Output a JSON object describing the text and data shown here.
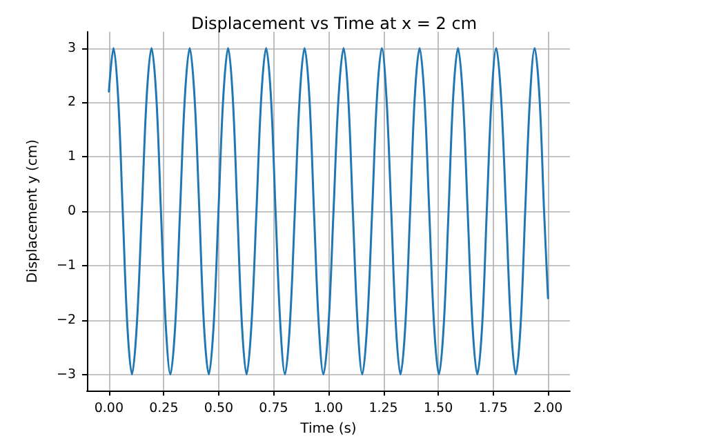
{
  "chart_data": {
    "type": "line",
    "title": "Displacement vs Time at x = 2 cm",
    "xlabel": "Time (s)",
    "ylabel": "Displacement y (cm)",
    "x": [
      0,
      0.021,
      0.042,
      0.063,
      0.084,
      0.105,
      0.127,
      0.15,
      0.172,
      0.194,
      0.216,
      0.237,
      0.259,
      0.28,
      0.302,
      0.324,
      0.346,
      0.368,
      0.39,
      0.412,
      0.433,
      0.455,
      0.477,
      0.499,
      0.521,
      0.543,
      0.564,
      0.585,
      0.606,
      0.627,
      0.649,
      0.672,
      0.694,
      0.716,
      0.738,
      0.759,
      0.781,
      0.802,
      0.824,
      0.847,
      0.869,
      0.891,
      0.913,
      0.934,
      0.956,
      0.977,
      1.0,
      1.023,
      1.046,
      1.069,
      1.09,
      1.111,
      1.133,
      1.154,
      1.176,
      1.199,
      1.221,
      1.243,
      1.264,
      1.286,
      1.307,
      1.328,
      1.35,
      1.372,
      1.393,
      1.415,
      1.437,
      1.459,
      1.481,
      1.503,
      1.525,
      1.547,
      1.568,
      1.59,
      1.612,
      1.634,
      1.656,
      1.678,
      1.7,
      1.721,
      1.743,
      1.764,
      1.786,
      1.809,
      1.831,
      1.853,
      1.875,
      1.896,
      1.918,
      1.939,
      1.961,
      1.982,
      2.0
    ],
    "series": [
      {
        "color": "#1f77b4",
        "values": [
          2.2,
          3,
          2.1,
          0,
          -2.1,
          -3,
          -2.1,
          0,
          2.1,
          3,
          2.1,
          0,
          -2.1,
          -3,
          -2.1,
          0,
          2.1,
          3,
          2.1,
          0,
          -2.1,
          -3,
          -2.1,
          0,
          2.1,
          3,
          2.1,
          0,
          -2.1,
          -3,
          -2.1,
          0,
          2.1,
          3,
          2.1,
          0,
          -2.1,
          -3,
          -2.1,
          0,
          2.1,
          3,
          2.1,
          0,
          -2.1,
          -3,
          -2.1,
          0,
          2.1,
          3,
          2.1,
          0,
          -2.1,
          -3,
          -2.1,
          0,
          2.1,
          3,
          2.1,
          0,
          -2.1,
          -3,
          -2.1,
          0,
          2.1,
          3,
          2.1,
          0,
          -2.1,
          -3,
          -2.1,
          0,
          2.1,
          3,
          2.1,
          0,
          -2.1,
          -3,
          -2.1,
          0,
          2.1,
          3,
          2.1,
          0,
          -2.1,
          -3,
          -2.1,
          0,
          2.1,
          3,
          2.1,
          0,
          -1.6
        ]
      }
    ],
    "xlim": [
      -0.1,
      2.1
    ],
    "xticks": [
      {
        "value": 0,
        "label": "0.00"
      },
      {
        "value": 0.25,
        "label": "0.25"
      },
      {
        "value": 0.5,
        "label": "0.50"
      },
      {
        "value": 0.75,
        "label": "0.75"
      },
      {
        "value": 1,
        "label": "1.00"
      },
      {
        "value": 1.25,
        "label": "1.25"
      },
      {
        "value": 1.5,
        "label": "1.50"
      },
      {
        "value": 1.75,
        "label": "1.75"
      },
      {
        "value": 2,
        "label": "2.00"
      }
    ],
    "ylim": [
      -3.3,
      3.3
    ],
    "yticks": [
      {
        "value": -3,
        "label": "−3"
      },
      {
        "value": -2,
        "label": "−2"
      },
      {
        "value": -1,
        "label": "−1"
      },
      0,
      1,
      2,
      3
    ],
    "grid": true,
    "marker": "none",
    "line_style": "solid"
  }
}
